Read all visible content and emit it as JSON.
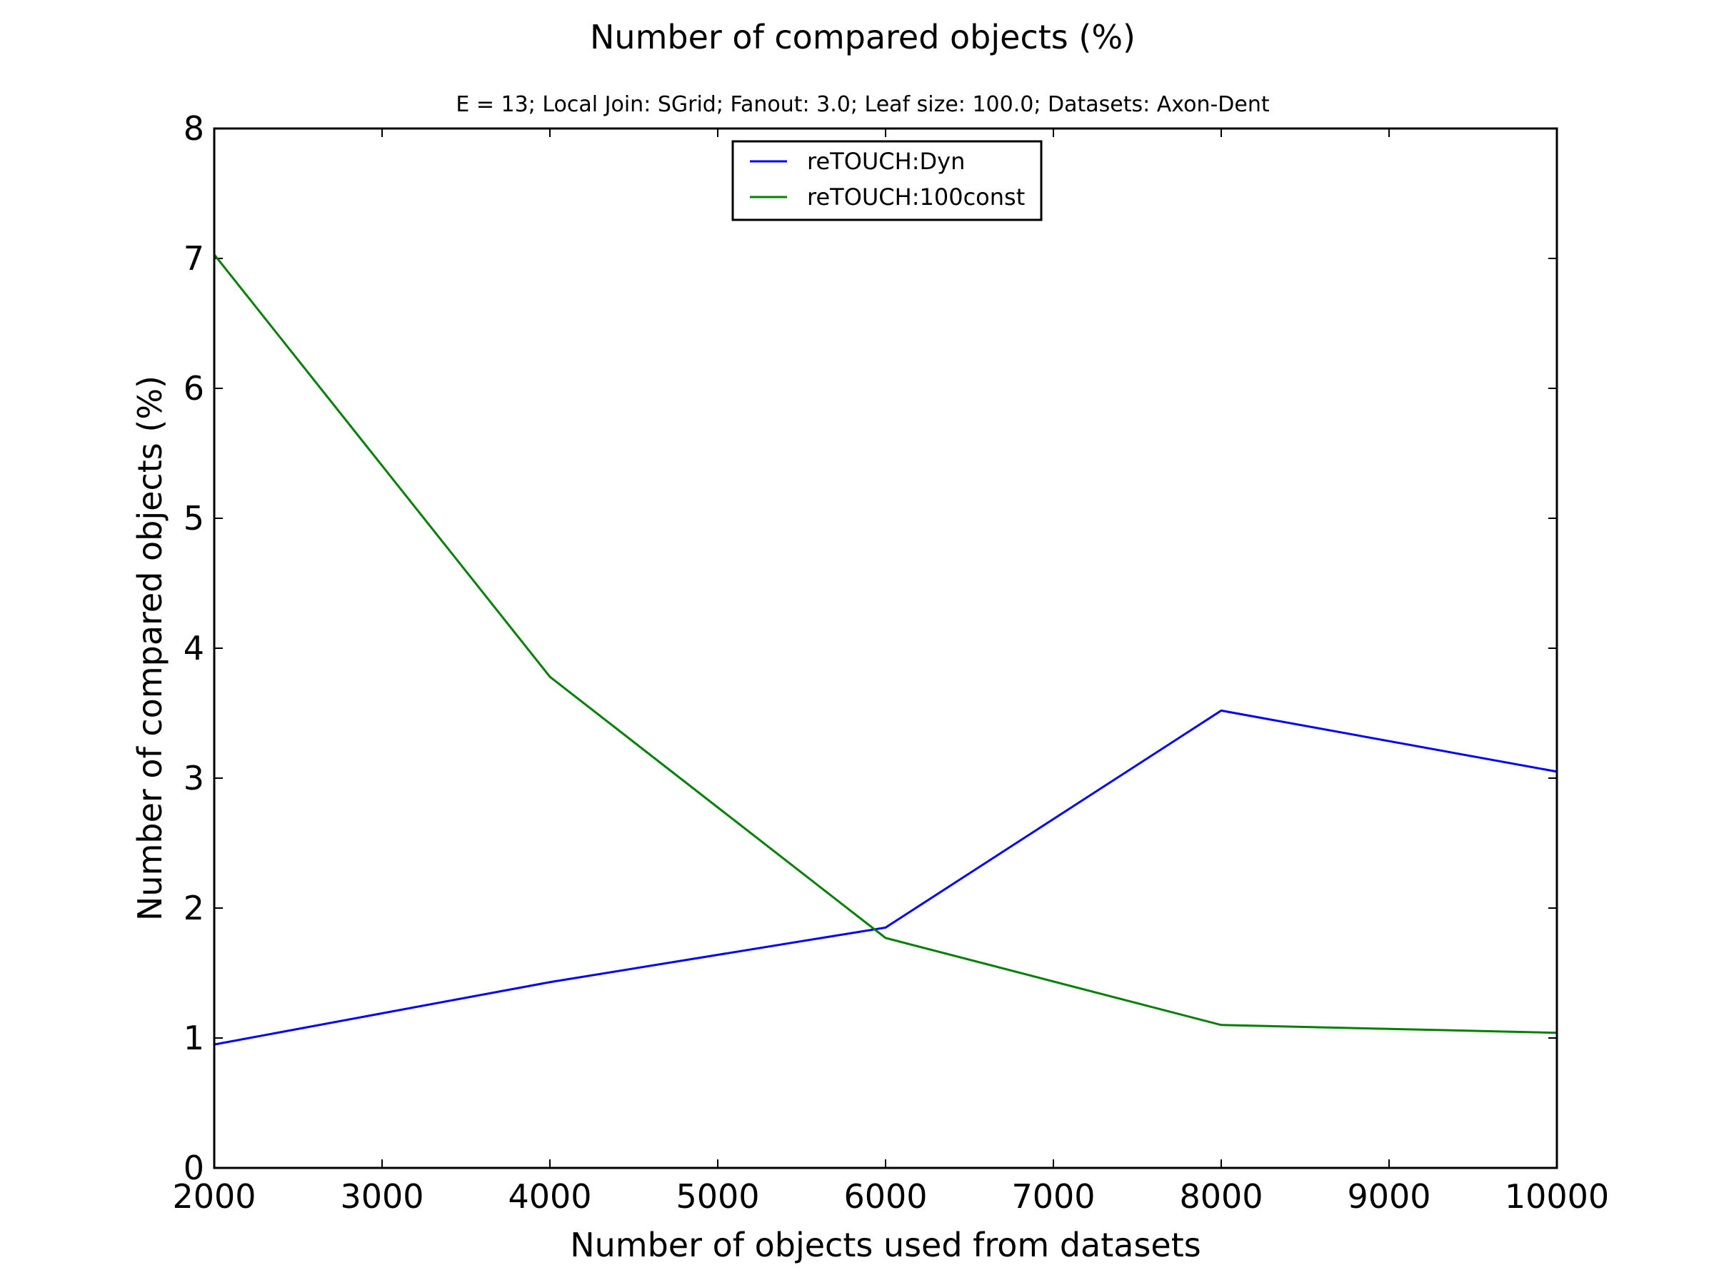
{
  "chart_data": {
    "type": "line",
    "title": "Number of compared objects (%)",
    "subtitle": "E = 13; Local Join: SGrid; Fanout: 3.0; Leaf size: 100.0; Datasets: Axon-Dent",
    "xlabel": "Number of objects used from datasets",
    "ylabel": "Number of compared objects (%)",
    "xlim": [
      2000,
      10000
    ],
    "ylim": [
      0,
      8
    ],
    "xticks": [
      2000,
      3000,
      4000,
      5000,
      6000,
      7000,
      8000,
      9000,
      10000
    ],
    "yticks": [
      0,
      1,
      2,
      3,
      4,
      5,
      6,
      7,
      8
    ],
    "grid": false,
    "legend_position": "top-center",
    "series": [
      {
        "name": "reTOUCH:Dyn",
        "color": "#0000ff",
        "x": [
          2000,
          4000,
          6000,
          8000,
          10000
        ],
        "y": [
          0.95,
          1.43,
          1.85,
          3.52,
          3.05
        ]
      },
      {
        "name": "reTOUCH:100const",
        "color": "#008000",
        "x": [
          2000,
          4000,
          6000,
          8000,
          10000
        ],
        "y": [
          7.03,
          3.78,
          1.77,
          1.1,
          1.04
        ]
      }
    ]
  }
}
